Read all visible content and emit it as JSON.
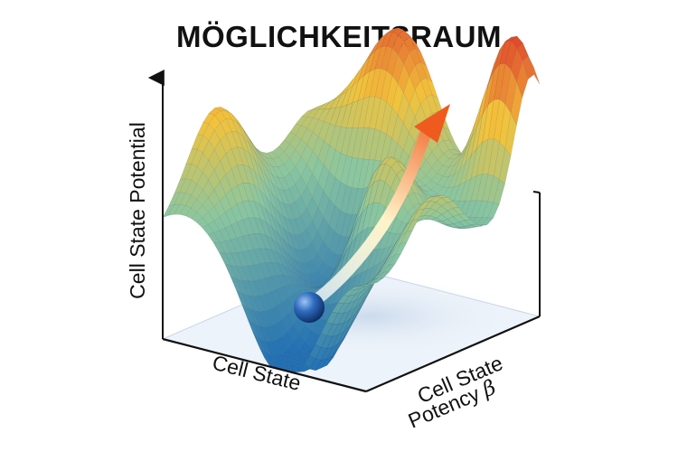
{
  "title": "MÖGLICHKEITSRAUM",
  "axes": {
    "vertical": "Cell State Potential",
    "front": "Cell State",
    "depth_line1": "Cell State",
    "depth_line2": "Potency",
    "depth_symbol": "β"
  },
  "colors": {
    "low": "#1f6fb4",
    "mid": "#8ac6a0",
    "high_mid": "#f3c33a",
    "high": "#e0462b",
    "ball": "#1d4f9a",
    "floor": "#e6eef7",
    "arrow_tip": "#ef6a24"
  }
}
